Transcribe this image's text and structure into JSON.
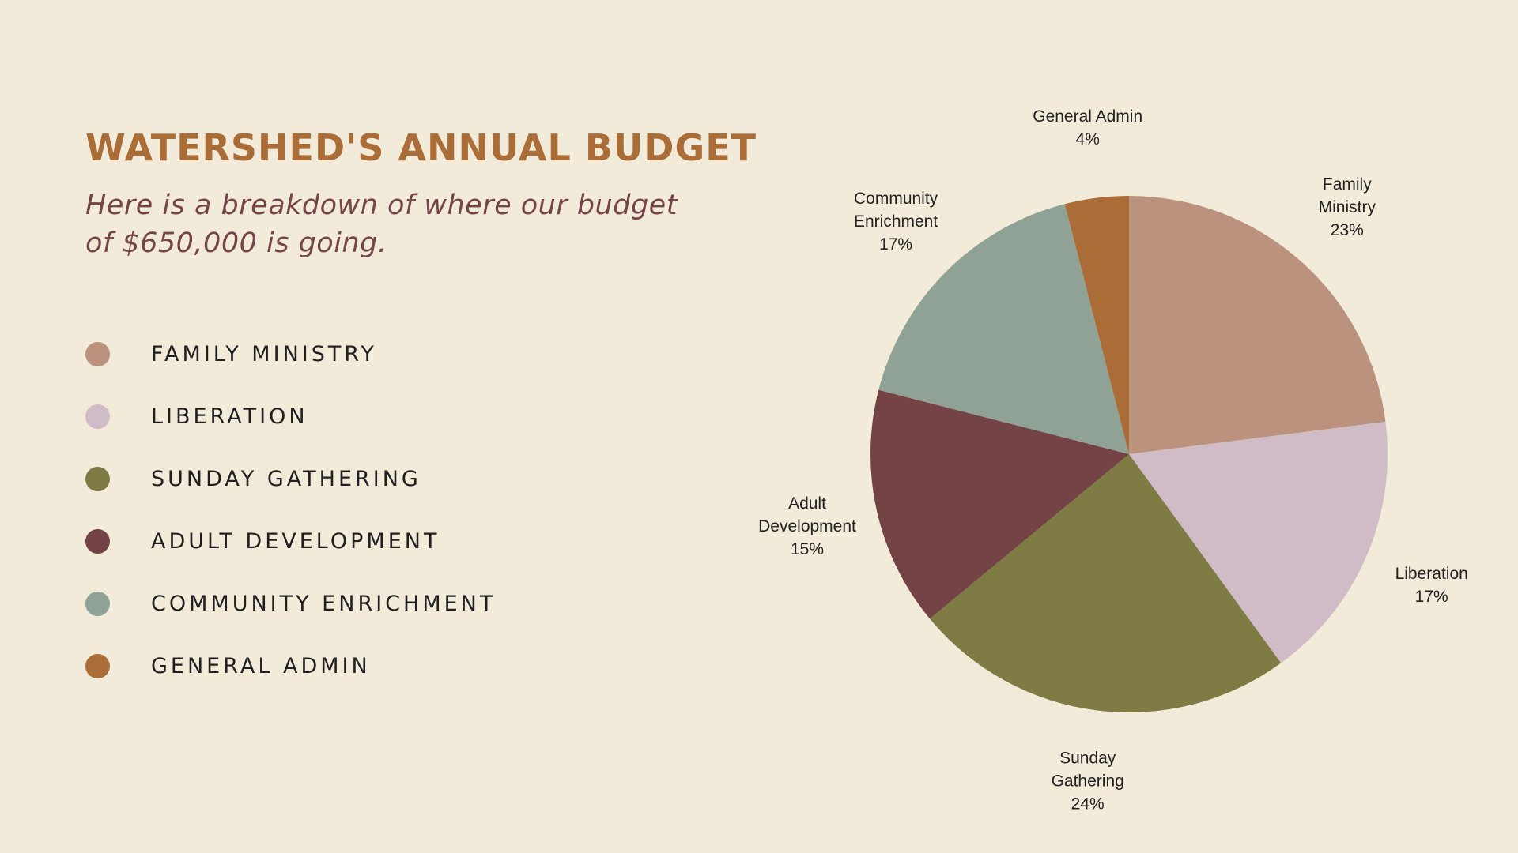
{
  "title": "WATERSHED'S ANNUAL BUDGET",
  "subtitle": "Here is a breakdown of where our budget of $650,000 is going.",
  "legend": [
    {
      "label": "FAMILY MINISTRY",
      "color": "#ba927d"
    },
    {
      "label": "LIBERATION",
      "color": "#cfbcc6"
    },
    {
      "label": "SUNDAY GATHERING",
      "color": "#7e7c44"
    },
    {
      "label": "ADULT DEVELOPMENT",
      "color": "#744345"
    },
    {
      "label": "COMMUNITY ENRICHMENT",
      "color": "#8fa295"
    },
    {
      "label": "GENERAL ADMIN",
      "color": "#aa6d37"
    }
  ],
  "chart_data": {
    "type": "pie",
    "title": "",
    "start": "12 o'clock, clockwise",
    "slices": [
      {
        "name": "Family Ministry",
        "label_lines": [
          "Family",
          "Ministry"
        ],
        "value": 23,
        "value_label": "23%",
        "color": "#ba927d"
      },
      {
        "name": "Liberation",
        "label_lines": [
          "Liberation"
        ],
        "value": 17,
        "value_label": "17%",
        "color": "#cfbcc6"
      },
      {
        "name": "Sunday Gathering",
        "label_lines": [
          "Sunday",
          "Gathering"
        ],
        "value": 24,
        "value_label": "24%",
        "color": "#7e7c44"
      },
      {
        "name": "Adult Development",
        "label_lines": [
          "Adult",
          "Development"
        ],
        "value": 15,
        "value_label": "15%",
        "color": "#744345"
      },
      {
        "name": "Community Enrichment",
        "label_lines": [
          "Community",
          "Enrichment"
        ],
        "value": 17,
        "value_label": "17%",
        "color": "#8fa295"
      },
      {
        "name": "General Admin",
        "label_lines": [
          "General Admin"
        ],
        "value": 4,
        "value_label": "4%",
        "color": "#aa6d37"
      }
    ]
  }
}
